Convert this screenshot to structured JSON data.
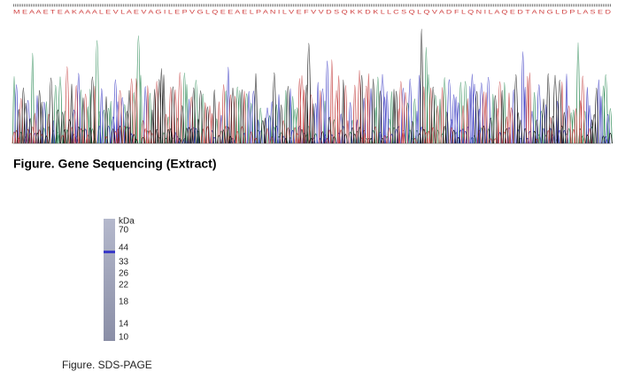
{
  "chromatogram": {
    "protein_sequence": "M E A A E T E A K A A A L E V L A E V A G I L E P V G L Q E E A E L P A N I L V E F V V D S Q K K D K L L C S Q L Q V A D F L Q N I L A Q E D T A N G L D P L A S E D"
  },
  "figure1": {
    "caption": "Figure. Gene Sequencing (Extract)"
  },
  "gel": {
    "unit": "kDa",
    "markers": [
      70,
      44,
      33,
      26,
      22,
      18,
      14,
      10
    ]
  },
  "figure2": {
    "caption": "Figure. SDS-PAGE"
  }
}
